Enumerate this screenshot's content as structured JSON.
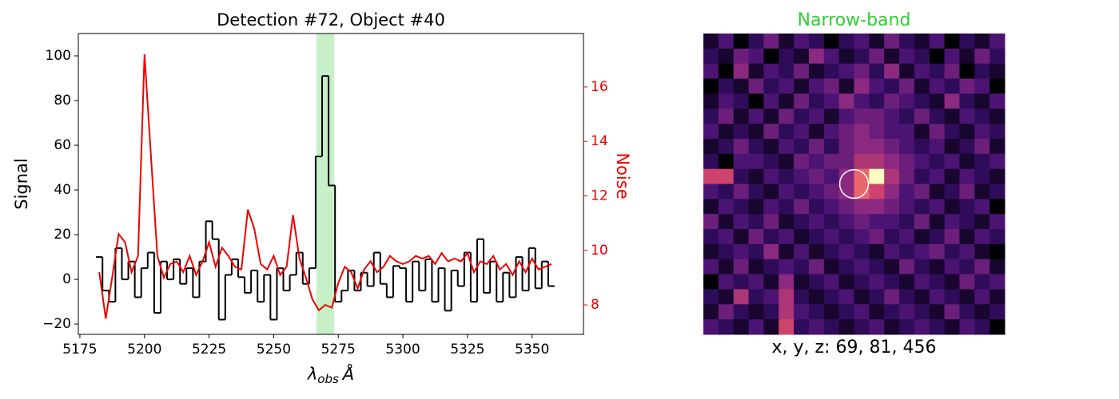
{
  "chart_data": [
    {
      "type": "line",
      "title": "Detection #72, Object #40",
      "x_label": {
        "symbol": "λ",
        "subscript": "obs",
        "unit": "Å"
      },
      "y_label": "Signal",
      "y2_label": "Noise",
      "x": [
        5182.5,
        5185,
        5187.5,
        5190,
        5192.5,
        5195,
        5197.5,
        5200,
        5202.5,
        5205,
        5207.5,
        5210,
        5212.5,
        5215,
        5217.5,
        5220,
        5222.5,
        5225,
        5227.5,
        5230,
        5232.5,
        5235,
        5237.5,
        5240,
        5242.5,
        5245,
        5247.5,
        5250,
        5252.5,
        5255,
        5257.5,
        5260,
        5262.5,
        5265,
        5267.5,
        5270,
        5272.5,
        5275,
        5277.5,
        5280,
        5282.5,
        5285,
        5287.5,
        5290,
        5292.5,
        5295,
        5297.5,
        5300,
        5302.5,
        5305,
        5307.5,
        5310,
        5312.5,
        5315,
        5317.5,
        5320,
        5322.5,
        5325,
        5327.5,
        5330,
        5332.5,
        5335,
        5337.5,
        5340,
        5342.5,
        5345,
        5347.5,
        5350,
        5352.5,
        5355,
        5357.5
      ],
      "series": [
        {
          "color": "#000000",
          "drawstyle": "steps-mid",
          "values": [
            10,
            -5,
            -10,
            14,
            0,
            8,
            -8,
            5,
            12,
            -15,
            8,
            0,
            9,
            -2,
            5,
            -8,
            8,
            26,
            18,
            -18,
            2,
            9,
            1,
            -6,
            4,
            -10,
            2,
            -18,
            5,
            -5,
            2,
            12,
            -2,
            5,
            55,
            91,
            42,
            -10,
            -5,
            4,
            -5,
            3,
            -3,
            12,
            -2,
            -8,
            6,
            5,
            -10,
            8,
            -5,
            9,
            -10,
            5,
            -14,
            4,
            -3,
            12,
            -10,
            18,
            -6,
            8,
            -10,
            3,
            -8,
            10,
            -5,
            14,
            -4,
            8,
            -3
          ]
        },
        {
          "color": "#ee0000",
          "axis": "y2",
          "values": [
            9.2,
            7.5,
            9,
            10.6,
            10.3,
            9.2,
            9.8,
            17.2,
            13.5,
            9.8,
            9,
            9.5,
            9.6,
            9.2,
            9.8,
            9.1,
            9.6,
            10.3,
            9.4,
            10.1,
            9.8,
            9.4,
            9.3,
            11.5,
            10.8,
            9.5,
            9.3,
            9.8,
            9.1,
            9.4,
            11.3,
            9.7,
            9,
            8.2,
            7.8,
            8,
            7.9,
            8.8,
            9.4,
            9.2,
            8.6,
            9.3,
            9.6,
            9.2,
            9.4,
            9.8,
            9.6,
            9.5,
            9.6,
            9.8,
            9.7,
            9.8,
            9.5,
            9.9,
            9.6,
            9.7,
            9.6,
            9.9,
            9.2,
            9.6,
            9.5,
            9.8,
            9.3,
            9.5,
            9.1,
            9.6,
            9.2,
            9.7,
            9.3,
            9.4,
            9.5
          ]
        }
      ],
      "highlight": [
        5266.5,
        5273.5
      ],
      "highlight_color": "#c8f0c8",
      "xlim": [
        5174.4,
        5369.9
      ],
      "xticks": [
        5175,
        5200,
        5225,
        5250,
        5275,
        5300,
        5325,
        5350
      ],
      "ylim": [
        -24.6,
        110
      ],
      "yticks": [
        {
          "value": -20,
          "label": "−20"
        },
        0,
        20,
        40,
        60,
        80,
        100
      ],
      "y2lim": [
        6.92,
        17.96
      ],
      "y2ticks": [
        8,
        10,
        12,
        14,
        16
      ],
      "y2_color": "#ee0000"
    },
    {
      "type": "image",
      "title": "Narrow-band",
      "title_color": "#33cc33",
      "colormap": "magma",
      "caption": "x, y, z: 69, 81, 456",
      "aperture": {
        "x": 10,
        "y": 10,
        "r": 0.95,
        "color": "#ffffff"
      },
      "values": [
        [
          1,
          3,
          0,
          2,
          4,
          1,
          3,
          2,
          0,
          2,
          3,
          1,
          4,
          2,
          1,
          3,
          0,
          2,
          1,
          3
        ],
        [
          2,
          1,
          4,
          3,
          0,
          2,
          1,
          5,
          3,
          1,
          2,
          4,
          1,
          3,
          2,
          0,
          3,
          1,
          4,
          2
        ],
        [
          3,
          0,
          5,
          1,
          3,
          2,
          4,
          1,
          2,
          3,
          4,
          2,
          5,
          1,
          3,
          2,
          4,
          0,
          2,
          1
        ],
        [
          0,
          2,
          1,
          4,
          2,
          3,
          1,
          3,
          4,
          1,
          5,
          3,
          2,
          4,
          1,
          3,
          2,
          4,
          3,
          0
        ],
        [
          1,
          3,
          2,
          0,
          3,
          1,
          4,
          2,
          3,
          5,
          3,
          2,
          4,
          3,
          2,
          1,
          5,
          2,
          1,
          3
        ],
        [
          2,
          4,
          1,
          3,
          1,
          4,
          2,
          3,
          1,
          3,
          4,
          4,
          3,
          2,
          4,
          2,
          1,
          3,
          2,
          1
        ],
        [
          3,
          1,
          2,
          1,
          4,
          2,
          3,
          1,
          3,
          4,
          5,
          4,
          3,
          3,
          1,
          4,
          2,
          1,
          3,
          2
        ],
        [
          1,
          2,
          4,
          2,
          1,
          3,
          2,
          4,
          2,
          4,
          5,
          5,
          4,
          3,
          2,
          3,
          1,
          2,
          4,
          1
        ],
        [
          2,
          0,
          3,
          3,
          2,
          1,
          4,
          3,
          4,
          4,
          6,
          6,
          5,
          4,
          3,
          2,
          3,
          1,
          2,
          3
        ],
        [
          7,
          7,
          2,
          1,
          3,
          2,
          3,
          4,
          3,
          5,
          8,
          10,
          6,
          4,
          2,
          3,
          1,
          3,
          2,
          1
        ],
        [
          3,
          2,
          4,
          2,
          1,
          3,
          2,
          3,
          4,
          5,
          8,
          7,
          5,
          3,
          4,
          1,
          2,
          4,
          1,
          2
        ],
        [
          1,
          3,
          2,
          1,
          3,
          2,
          4,
          2,
          3,
          4,
          5,
          5,
          4,
          3,
          2,
          3,
          1,
          2,
          3,
          0
        ],
        [
          4,
          1,
          3,
          2,
          4,
          1,
          2,
          3,
          2,
          3,
          4,
          3,
          3,
          2,
          4,
          1,
          3,
          2,
          1,
          3
        ],
        [
          2,
          3,
          1,
          4,
          2,
          3,
          1,
          2,
          3,
          2,
          3,
          4,
          2,
          3,
          1,
          2,
          4,
          1,
          3,
          2
        ],
        [
          1,
          2,
          3,
          2,
          5,
          1,
          3,
          1,
          2,
          3,
          2,
          1,
          3,
          2,
          3,
          4,
          2,
          3,
          1,
          0
        ],
        [
          3,
          1,
          4,
          1,
          2,
          3,
          2,
          4,
          1,
          2,
          3,
          2,
          1,
          4,
          2,
          1,
          3,
          2,
          4,
          1
        ],
        [
          0,
          3,
          2,
          3,
          1,
          5,
          1,
          2,
          3,
          1,
          2,
          3,
          2,
          1,
          3,
          2,
          1,
          4,
          2,
          3
        ],
        [
          2,
          1,
          6,
          2,
          3,
          6,
          2,
          1,
          2,
          3,
          1,
          2,
          4,
          2,
          1,
          3,
          2,
          1,
          3,
          1
        ],
        [
          1,
          4,
          2,
          1,
          2,
          6,
          3,
          2,
          1,
          2,
          3,
          1,
          2,
          3,
          2,
          1,
          4,
          2,
          1,
          2
        ],
        [
          3,
          2,
          1,
          3,
          1,
          7,
          2,
          3,
          2,
          1,
          2,
          3,
          1,
          2,
          3,
          2,
          1,
          3,
          2,
          0
        ]
      ]
    }
  ]
}
